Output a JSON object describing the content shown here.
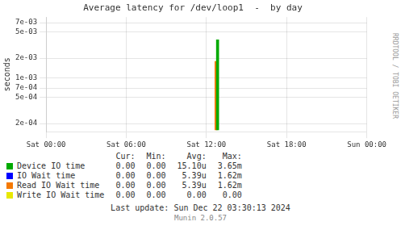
{
  "chart_data": {
    "type": "bar",
    "title": "Average latency for /dev/loop1  -  by day",
    "ylabel": "seconds",
    "log": "y",
    "grid": true,
    "legend": "bottom",
    "xlim": [
      0,
      86400
    ],
    "xticks": [
      {
        "value": 0,
        "label": "Sat 00:00"
      },
      {
        "value": 21600,
        "label": "Sat 06:00"
      },
      {
        "value": 43200,
        "label": "Sat 12:00"
      },
      {
        "value": 64800,
        "label": "Sat 18:00"
      },
      {
        "value": 86400,
        "label": "Sun 00:00"
      }
    ],
    "ylim": [
      0.00015,
      0.0085
    ],
    "yticks": [
      {
        "value": 0.0002,
        "label": "2e-04"
      },
      {
        "value": 0.0005,
        "label": "5e-04"
      },
      {
        "value": 0.0007,
        "label": "7e-04"
      },
      {
        "value": 0.001,
        "label": "1e-03"
      },
      {
        "value": 0.002,
        "label": "2e-03"
      },
      {
        "value": 0.005,
        "label": "5e-03"
      },
      {
        "value": 0.007,
        "label": "7e-03"
      }
    ],
    "baseline": 0.00016,
    "series": [
      {
        "name": "Device IO time",
        "color": "#00aa00",
        "x": [
          46200
        ],
        "values": [
          0.00365
        ],
        "stats": [
          "0.00",
          "0.00",
          "15.10u",
          "3.65m"
        ]
      },
      {
        "name": "IO Wait time",
        "color": "#0000ff",
        "x": [],
        "values": [],
        "stats": [
          "0.00",
          "0.00",
          "5.39u",
          "1.62m"
        ]
      },
      {
        "name": "Read IO Wait time",
        "color": "#f57900",
        "x": [
          45800
        ],
        "values": [
          0.00162
        ],
        "stats": [
          "0.00",
          "0.00",
          "5.39u",
          "1.62m"
        ]
      },
      {
        "name": "Write IO Wait time",
        "color": "#e8e800",
        "x": [],
        "values": [],
        "stats": [
          "0.00",
          "0.00",
          "0.00",
          "0.00"
        ]
      }
    ],
    "stat_headers": [
      "Cur:",
      "Min:",
      "Avg:",
      "Max:"
    ],
    "footnotes": [
      "Last update: Sun Dec 22 03:30:13 2024",
      "Munin 2.0.57"
    ],
    "side_text": "RRDTOOL / TOBI OETIKER"
  }
}
